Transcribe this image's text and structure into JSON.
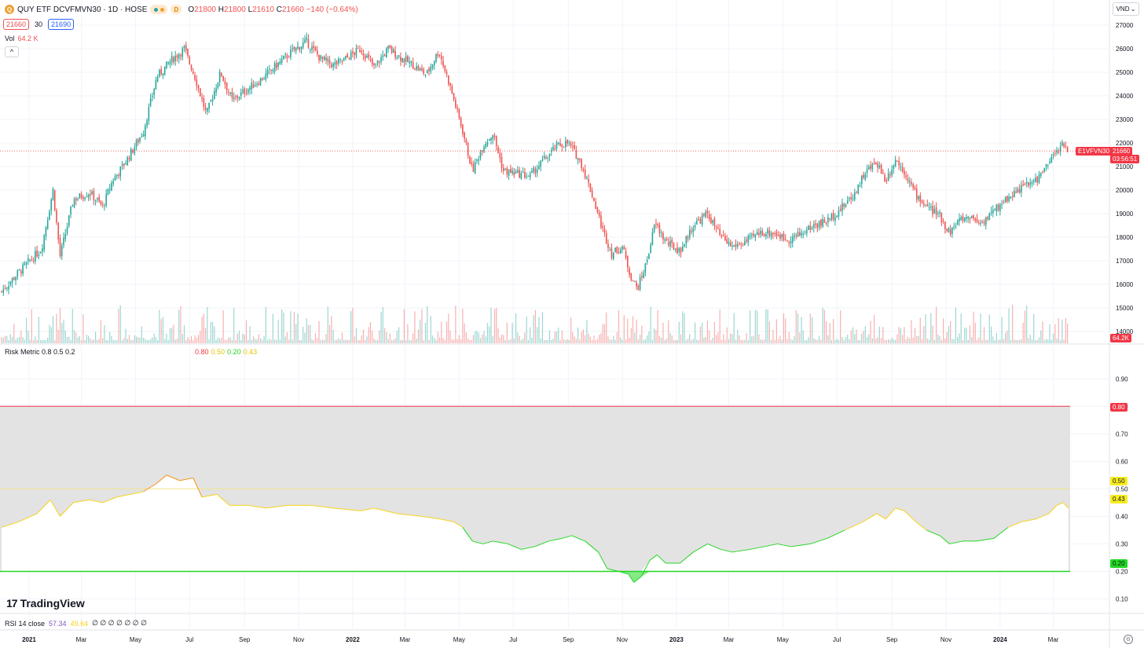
{
  "header": {
    "symbol_badge": "Q",
    "title": "QUY ETF DCVFMVN30 · 1D · HOSE",
    "d_badge": "D",
    "ohlc": [
      {
        "k": "O",
        "v": "21800"
      },
      {
        "k": "H",
        "v": "21800"
      },
      {
        "k": "L",
        "v": "21610"
      },
      {
        "k": "C",
        "v": "21660"
      },
      {
        "k": "",
        "v": "−140 (−0.64%)"
      }
    ],
    "sell_price": "21660",
    "spread": "30",
    "buy_price": "21690",
    "currency": "VND",
    "currency_caret": "⌄",
    "collapse_icon": "^"
  },
  "volume_legend": {
    "label": "Vol",
    "value": "64.2 K"
  },
  "risk_legend": {
    "label": "Risk Metric 0.8 0.5 0.2",
    "values": [
      {
        "v": "0.80",
        "color": "#f23645"
      },
      {
        "v": "0.50",
        "color": "#f7d31e"
      },
      {
        "v": "0.20",
        "color": "#22d722"
      },
      {
        "v": "0.43",
        "color": "#f7d31e"
      }
    ]
  },
  "rsi_legend": {
    "label": "RSI 14 close",
    "v1": "57.34",
    "v2": "49.64",
    "rest": "∅ ∅ ∅ ∅ ∅ ∅ ∅"
  },
  "logo": {
    "mark": "17",
    "text": "TradingView"
  },
  "axis_tags": {
    "symbol": "E1VFVN30",
    "last_price": "21660",
    "countdown": "03:56:51",
    "volume": "64.2K",
    "risk_080": "0.80",
    "risk_050": "0.50",
    "risk_043": "0.43",
    "risk_020": "0.20"
  },
  "colors": {
    "up": "#26a69a",
    "down": "#ef5350",
    "grid": "#f0f3fa",
    "risk_high": "#f23645",
    "risk_mid": "#f7d31e",
    "risk_low": "#22d722",
    "risk_orange": "#f7931a",
    "band_fill": "#e3e3e3",
    "settings_icon": "gear-icon"
  },
  "chart_data": [
    {
      "type": "candlestick",
      "title": "QUY ETF DCVFMVN30 · 1D · HOSE",
      "y_ticks": [
        27000,
        26000,
        25000,
        24000,
        23000,
        22000,
        21000,
        20000,
        19000,
        18000,
        17000,
        16000,
        15000,
        14000
      ],
      "ylim": [
        13500,
        27400
      ],
      "last_price": 21660,
      "x_labels": [
        "2021",
        "Mar",
        "May",
        "Jul",
        "Sep",
        "Nov",
        "2022",
        "Mar",
        "May",
        "Jul",
        "Sep",
        "Nov",
        "2023",
        "Mar",
        "May",
        "Jul",
        "Sep",
        "Nov",
        "2024",
        "Mar"
      ],
      "x_dates": [
        "2021-01-01",
        "2021-03-01",
        "2021-05-01",
        "2021-07-01",
        "2021-09-01",
        "2021-11-01",
        "2022-01-01",
        "2022-03-01",
        "2022-05-01",
        "2022-07-01",
        "2022-09-01",
        "2022-11-01",
        "2023-01-01",
        "2023-03-01",
        "2023-05-01",
        "2023-07-01",
        "2023-09-01",
        "2023-11-01",
        "2024-01-01",
        "2024-03-01"
      ],
      "x_range": [
        "2020-12-01",
        "2024-03-20"
      ],
      "close_path": [
        [
          "2020-12-01",
          15700
        ],
        [
          "2020-12-20",
          16500
        ],
        [
          "2021-01-15",
          17500
        ],
        [
          "2021-01-28",
          20000
        ],
        [
          "2021-02-05",
          17200
        ],
        [
          "2021-02-20",
          19600
        ],
        [
          "2021-03-10",
          19900
        ],
        [
          "2021-03-25",
          19300
        ],
        [
          "2021-04-05",
          20400
        ],
        [
          "2021-04-20",
          21200
        ],
        [
          "2021-05-10",
          22500
        ],
        [
          "2021-05-25",
          24800
        ],
        [
          "2021-06-10",
          25500
        ],
        [
          "2021-06-25",
          26000
        ],
        [
          "2021-07-08",
          24700
        ],
        [
          "2021-07-20",
          23200
        ],
        [
          "2021-08-05",
          25000
        ],
        [
          "2021-08-18",
          23800
        ],
        [
          "2021-09-05",
          24300
        ],
        [
          "2021-09-20",
          24700
        ],
        [
          "2021-10-10",
          25400
        ],
        [
          "2021-10-25",
          25900
        ],
        [
          "2021-11-10",
          26300
        ],
        [
          "2021-11-25",
          25600
        ],
        [
          "2021-12-10",
          25300
        ],
        [
          "2021-12-25",
          25600
        ],
        [
          "2022-01-10",
          26000
        ],
        [
          "2022-01-25",
          25200
        ],
        [
          "2022-02-10",
          26000
        ],
        [
          "2022-02-25",
          25600
        ],
        [
          "2022-03-10",
          25300
        ],
        [
          "2022-03-25",
          24900
        ],
        [
          "2022-04-08",
          25900
        ],
        [
          "2022-04-20",
          24500
        ],
        [
          "2022-05-05",
          22500
        ],
        [
          "2022-05-16",
          20800
        ],
        [
          "2022-05-28",
          21900
        ],
        [
          "2022-06-08",
          22400
        ],
        [
          "2022-06-20",
          20800
        ],
        [
          "2022-07-05",
          20700
        ],
        [
          "2022-07-20",
          20600
        ],
        [
          "2022-08-05",
          21300
        ],
        [
          "2022-08-20",
          21900
        ],
        [
          "2022-09-01",
          22000
        ],
        [
          "2022-09-15",
          21200
        ],
        [
          "2022-09-28",
          19800
        ],
        [
          "2022-10-10",
          18300
        ],
        [
          "2022-10-20",
          17300
        ],
        [
          "2022-11-01",
          17600
        ],
        [
          "2022-11-10",
          16400
        ],
        [
          "2022-11-18",
          15800
        ],
        [
          "2022-11-28",
          16900
        ],
        [
          "2022-12-08",
          18600
        ],
        [
          "2022-12-20",
          17800
        ],
        [
          "2023-01-05",
          17400
        ],
        [
          "2023-01-20",
          18500
        ],
        [
          "2023-02-05",
          19000
        ],
        [
          "2023-02-20",
          18000
        ],
        [
          "2023-03-05",
          17600
        ],
        [
          "2023-03-20",
          17800
        ],
        [
          "2023-04-05",
          18200
        ],
        [
          "2023-04-20",
          18200
        ],
        [
          "2023-05-05",
          17900
        ],
        [
          "2023-05-20",
          18100
        ],
        [
          "2023-06-05",
          18500
        ],
        [
          "2023-06-20",
          18700
        ],
        [
          "2023-07-05",
          19200
        ],
        [
          "2023-07-20",
          19800
        ],
        [
          "2023-08-01",
          20700
        ],
        [
          "2023-08-15",
          21200
        ],
        [
          "2023-08-25",
          20400
        ],
        [
          "2023-09-05",
          21300
        ],
        [
          "2023-09-15",
          20800
        ],
        [
          "2023-09-28",
          19800
        ],
        [
          "2023-10-10",
          19300
        ],
        [
          "2023-10-25",
          18900
        ],
        [
          "2023-11-05",
          18200
        ],
        [
          "2023-11-15",
          18700
        ],
        [
          "2023-11-28",
          18900
        ],
        [
          "2023-12-10",
          18600
        ],
        [
          "2023-12-25",
          19100
        ],
        [
          "2024-01-10",
          19700
        ],
        [
          "2024-01-25",
          20100
        ],
        [
          "2024-02-10",
          20400
        ],
        [
          "2024-02-25",
          21100
        ],
        [
          "2024-03-05",
          21700
        ],
        [
          "2024-03-12",
          21900
        ],
        [
          "2024-03-18",
          21660
        ]
      ],
      "volume_series": {
        "name": "Vol",
        "last": "64.2 K"
      }
    },
    {
      "type": "line",
      "title": "Risk Metric 0.8 0.5 0.2",
      "y_ticks": [
        0.9,
        0.8,
        0.7,
        0.6,
        0.5,
        0.4,
        0.3,
        0.2,
        0.1
      ],
      "ylim": [
        0.05,
        0.975
      ],
      "levels": [
        0.8,
        0.5,
        0.2
      ],
      "last_value": 0.43,
      "series_path": [
        [
          "2020-12-01",
          0.36
        ],
        [
          "2020-12-20",
          0.38
        ],
        [
          "2021-01-10",
          0.41
        ],
        [
          "2021-01-25",
          0.46
        ],
        [
          "2021-02-05",
          0.4
        ],
        [
          "2021-02-20",
          0.45
        ],
        [
          "2021-03-10",
          0.46
        ],
        [
          "2021-03-25",
          0.45
        ],
        [
          "2021-04-10",
          0.47
        ],
        [
          "2021-04-25",
          0.48
        ],
        [
          "2021-05-10",
          0.49
        ],
        [
          "2021-05-25",
          0.52
        ],
        [
          "2021-06-05",
          0.55
        ],
        [
          "2021-06-20",
          0.53
        ],
        [
          "2021-07-05",
          0.54
        ],
        [
          "2021-07-15",
          0.47
        ],
        [
          "2021-08-01",
          0.48
        ],
        [
          "2021-08-15",
          0.44
        ],
        [
          "2021-09-05",
          0.44
        ],
        [
          "2021-09-25",
          0.43
        ],
        [
          "2021-10-20",
          0.44
        ],
        [
          "2021-11-15",
          0.44
        ],
        [
          "2021-12-10",
          0.43
        ],
        [
          "2022-01-10",
          0.42
        ],
        [
          "2022-01-25",
          0.43
        ],
        [
          "2022-02-20",
          0.41
        ],
        [
          "2022-03-20",
          0.4
        ],
        [
          "2022-04-10",
          0.39
        ],
        [
          "2022-04-25",
          0.38
        ],
        [
          "2022-05-05",
          0.36
        ],
        [
          "2022-05-16",
          0.31
        ],
        [
          "2022-05-28",
          0.3
        ],
        [
          "2022-06-08",
          0.31
        ],
        [
          "2022-06-25",
          0.3
        ],
        [
          "2022-07-10",
          0.28
        ],
        [
          "2022-07-25",
          0.29
        ],
        [
          "2022-08-10",
          0.31
        ],
        [
          "2022-08-25",
          0.32
        ],
        [
          "2022-09-05",
          0.33
        ],
        [
          "2022-09-20",
          0.31
        ],
        [
          "2022-10-05",
          0.27
        ],
        [
          "2022-10-15",
          0.21
        ],
        [
          "2022-10-28",
          0.2
        ],
        [
          "2022-11-08",
          0.19
        ],
        [
          "2022-11-14",
          0.16
        ],
        [
          "2022-11-22",
          0.18
        ],
        [
          "2022-12-02",
          0.24
        ],
        [
          "2022-12-10",
          0.26
        ],
        [
          "2022-12-20",
          0.23
        ],
        [
          "2023-01-05",
          0.23
        ],
        [
          "2023-01-20",
          0.27
        ],
        [
          "2023-02-05",
          0.3
        ],
        [
          "2023-02-20",
          0.28
        ],
        [
          "2023-03-05",
          0.27
        ],
        [
          "2023-03-25",
          0.28
        ],
        [
          "2023-04-10",
          0.29
        ],
        [
          "2023-04-25",
          0.3
        ],
        [
          "2023-05-10",
          0.29
        ],
        [
          "2023-06-01",
          0.3
        ],
        [
          "2023-06-20",
          0.32
        ],
        [
          "2023-07-10",
          0.35
        ],
        [
          "2023-07-30",
          0.38
        ],
        [
          "2023-08-15",
          0.41
        ],
        [
          "2023-08-25",
          0.39
        ],
        [
          "2023-09-05",
          0.43
        ],
        [
          "2023-09-15",
          0.42
        ],
        [
          "2023-09-28",
          0.38
        ],
        [
          "2023-10-10",
          0.35
        ],
        [
          "2023-10-25",
          0.33
        ],
        [
          "2023-11-05",
          0.3
        ],
        [
          "2023-11-20",
          0.31
        ],
        [
          "2023-12-05",
          0.31
        ],
        [
          "2023-12-25",
          0.32
        ],
        [
          "2024-01-10",
          0.36
        ],
        [
          "2024-01-25",
          0.38
        ],
        [
          "2024-02-10",
          0.39
        ],
        [
          "2024-02-25",
          0.41
        ],
        [
          "2024-03-05",
          0.44
        ],
        [
          "2024-03-12",
          0.45
        ],
        [
          "2024-03-18",
          0.43
        ]
      ]
    },
    {
      "type": "line",
      "title": "RSI 14 close",
      "series": [
        {
          "name": "RSI 14 close",
          "values": [
            57.34,
            49.64
          ]
        }
      ]
    }
  ]
}
